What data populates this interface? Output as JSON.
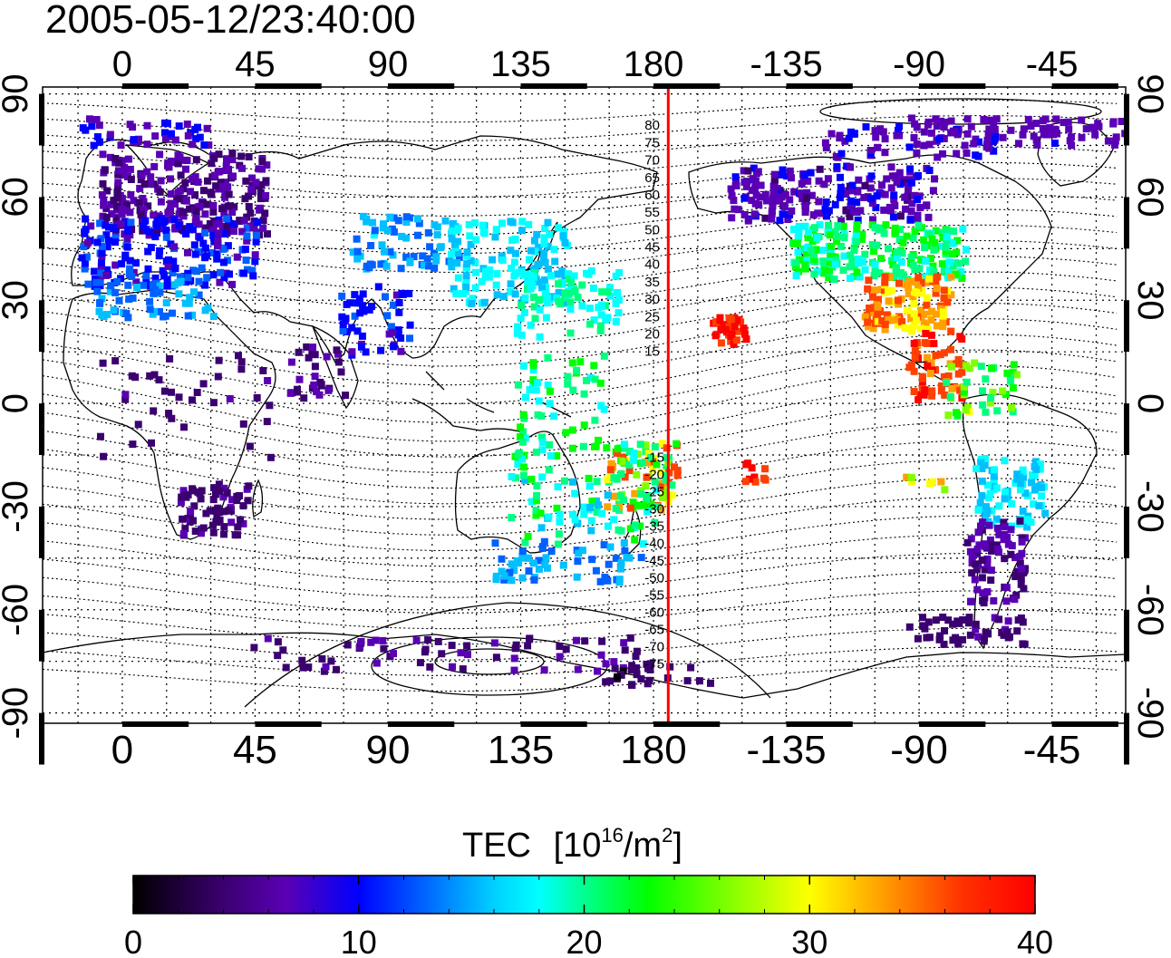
{
  "timestamp": "2005-05-12/23:40:00",
  "map": {
    "lon_ticks_top": [
      "0",
      "45",
      "90",
      "135",
      "180",
      "-135",
      "-90",
      "-45"
    ],
    "lon_ticks_bottom": [
      "0",
      "45",
      "90",
      "135",
      "180",
      "-135",
      "-90",
      "-45"
    ],
    "lat_ticks_left": [
      "90",
      "60",
      "30",
      "0",
      "-30",
      "-60",
      "-90"
    ],
    "lat_ticks_right": [
      "90",
      "60",
      "30",
      "0",
      "-30",
      "-60",
      "-90"
    ],
    "lon_tick_values": [
      0,
      45,
      90,
      135,
      180,
      225,
      270,
      315
    ],
    "lat_tick_values": [
      90,
      60,
      30,
      0,
      -30,
      -60,
      -90
    ],
    "lon_range": [
      -27,
      340
    ],
    "lat_range": [
      -93,
      92
    ],
    "grid": true,
    "meridian_marker_lon": 185,
    "meridian_marker_color": "#ff0000",
    "contour_labels_north": [
      "80",
      "75",
      "70",
      "65",
      "60",
      "55",
      "50",
      "45",
      "40",
      "35",
      "30",
      "25",
      "20",
      "15"
    ],
    "contour_labels_south": [
      "15",
      "20",
      "25",
      "30",
      "35",
      "40",
      "45",
      "50",
      "55",
      "60",
      "65",
      "70",
      "75"
    ]
  },
  "colorbar": {
    "title_main": "TEC",
    "title_unit_prefix": "[10",
    "title_exponent": "16",
    "title_unit_mid": "/m",
    "title_exponent2": "2",
    "title_unit_suffix": "]",
    "tick_labels": [
      "0",
      "10",
      "20",
      "30",
      "40"
    ],
    "range": [
      0,
      40
    ],
    "colors": [
      "#000000",
      "#3b0070",
      "#5a00b4",
      "#0000ff",
      "#0060ff",
      "#00c0ff",
      "#00ffff",
      "#00ff80",
      "#00ff00",
      "#80ff00",
      "#ffff00",
      "#ffa000",
      "#ff4000",
      "#ff0000"
    ]
  }
}
